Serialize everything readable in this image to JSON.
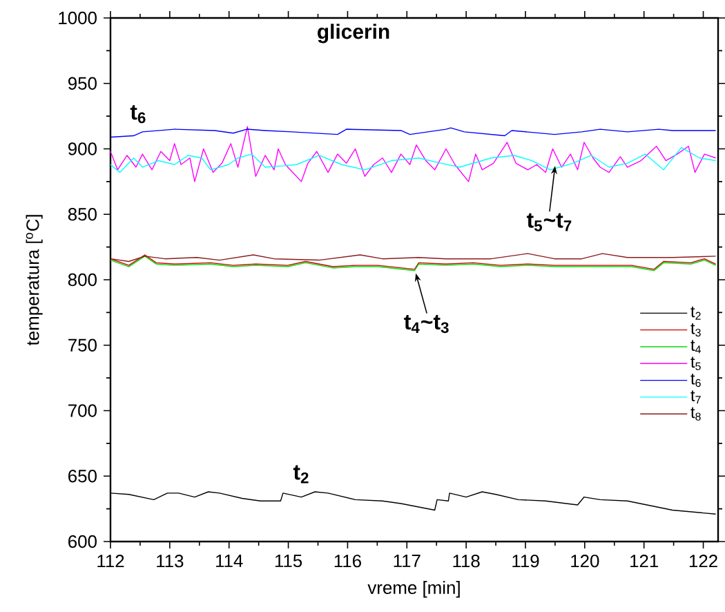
{
  "chart_data": {
    "type": "line",
    "title": "glicerin",
    "xlabel": "vreme [min]",
    "ylabel": "temperatura [$^{o}$C]",
    "xlim": [
      112,
      122.25
    ],
    "xticks": [
      112,
      113,
      114,
      115,
      116,
      117,
      118,
      119,
      120,
      121,
      122
    ],
    "ylim": [
      600,
      1000
    ],
    "yticks": [
      600,
      650,
      700,
      750,
      800,
      850,
      900,
      950,
      1000
    ],
    "legend": "bottom right",
    "grid": false,
    "marker": "none",
    "line_style": "solid",
    "annotations": [
      {
        "text": "t$_{6}$",
        "x": 112.47,
        "y": 912
      },
      {
        "text": "t$_{5}$~t$_{7}$",
        "x": 119.5,
        "y": 888
      },
      {
        "text": "t$_{4}$~t$_{3}$",
        "x": 117.15,
        "y": 806
      },
      {
        "text": "t$_{2}$",
        "x": 115.22,
        "y": 637
      }
    ],
    "series": [
      {
        "name": "t$_{2}$",
        "color": "#000000",
        "x": [
          112.0,
          112.31,
          112.73,
          112.96,
          113.15,
          113.42,
          113.65,
          113.84,
          114.22,
          114.53,
          114.87,
          114.91,
          115.22,
          115.45,
          115.67,
          116.13,
          116.59,
          116.9,
          117.47,
          117.51,
          117.7,
          117.72,
          118.0,
          118.27,
          118.5,
          118.88,
          119.34,
          119.88,
          119.99,
          120.26,
          120.72,
          121.48,
          122.21
        ],
        "values": [
          637,
          636,
          632,
          637,
          637,
          634,
          638,
          637,
          633,
          631,
          631,
          637,
          634,
          638,
          637,
          632,
          631,
          629,
          624,
          632,
          631,
          637,
          634,
          638,
          636,
          632,
          631,
          628,
          634,
          632,
          631,
          624,
          621
        ]
      },
      {
        "name": "t$_{3}$",
        "color": "#cc0000",
        "x": [
          112.0,
          112.31,
          112.58,
          112.77,
          113.08,
          113.69,
          114.07,
          114.45,
          114.99,
          115.29,
          115.75,
          116.13,
          116.51,
          117.13,
          117.2,
          117.66,
          118.12,
          118.58,
          119.04,
          119.49,
          119.95,
          120.33,
          120.79,
          121.17,
          121.33,
          121.79,
          122.02,
          122.21
        ],
        "values": [
          816,
          811,
          819,
          813,
          812,
          813,
          811,
          812,
          811,
          814,
          810,
          811,
          811,
          808,
          813,
          812,
          813,
          811,
          812,
          811,
          811,
          811,
          811,
          808,
          814,
          813,
          816,
          812
        ]
      },
      {
        "name": "t$_{4}$",
        "color": "#00dd00",
        "x": [
          112.0,
          112.31,
          112.58,
          112.77,
          113.08,
          113.69,
          114.07,
          114.45,
          114.99,
          115.29,
          115.75,
          116.13,
          116.51,
          117.13,
          117.2,
          117.66,
          118.12,
          118.58,
          119.04,
          119.49,
          119.95,
          120.33,
          120.79,
          121.17,
          121.33,
          121.79,
          122.02,
          122.21
        ],
        "values": [
          815,
          810,
          818,
          812,
          811,
          812,
          810,
          811,
          810,
          813,
          809,
          810,
          810,
          807,
          812,
          811,
          812,
          810,
          811,
          810,
          810,
          810,
          810,
          807,
          813,
          812,
          815,
          811
        ]
      },
      {
        "name": "t$_{5}$",
        "color": "#ff00ff",
        "x": [
          112.0,
          112.12,
          112.28,
          112.43,
          112.54,
          112.7,
          112.85,
          113.0,
          113.08,
          113.19,
          113.34,
          113.42,
          113.57,
          113.73,
          113.88,
          114.03,
          114.15,
          114.31,
          114.45,
          114.61,
          114.76,
          114.83,
          114.95,
          115.22,
          115.33,
          115.48,
          115.67,
          115.83,
          115.98,
          116.13,
          116.29,
          116.44,
          116.59,
          116.74,
          116.9,
          117.05,
          117.16,
          117.32,
          117.47,
          117.66,
          117.81,
          118.04,
          118.16,
          118.27,
          118.46,
          118.69,
          118.84,
          119.04,
          119.19,
          119.34,
          119.46,
          119.61,
          119.76,
          119.88,
          119.99,
          120.14,
          120.26,
          120.41,
          120.6,
          120.72,
          120.95,
          121.21,
          121.37,
          121.56,
          121.75,
          121.86,
          122.02,
          122.21
        ],
        "values": [
          898,
          884,
          895,
          886,
          896,
          884,
          898,
          891,
          904,
          888,
          893,
          875,
          900,
          882,
          889,
          904,
          886,
          917,
          879,
          895,
          884,
          900,
          888,
          875,
          889,
          898,
          882,
          896,
          889,
          900,
          879,
          888,
          893,
          882,
          896,
          888,
          903,
          891,
          884,
          900,
          888,
          875,
          896,
          884,
          889,
          905,
          889,
          884,
          888,
          882,
          900,
          886,
          896,
          884,
          905,
          893,
          886,
          882,
          894,
          886,
          891,
          902,
          891,
          896,
          902,
          882,
          896,
          893
        ]
      },
      {
        "name": "t$_{6}$",
        "color": "#0000ff",
        "x": [
          112.01,
          112.39,
          112.54,
          113.08,
          113.76,
          114.07,
          114.3,
          114.61,
          115.06,
          115.83,
          115.98,
          116.9,
          117.05,
          117.66,
          117.74,
          117.97,
          118.65,
          118.77,
          119.49,
          119.95,
          120.26,
          120.72,
          121.25,
          121.48,
          122.21
        ],
        "values": [
          909,
          910,
          913,
          915,
          914,
          912,
          915,
          914,
          913,
          911,
          915,
          914,
          911,
          915,
          916,
          913,
          910,
          914,
          911,
          913,
          915,
          913,
          915,
          914,
          914
        ]
      },
      {
        "name": "t$_{7}$",
        "color": "#00ffff",
        "x": [
          112.0,
          112.16,
          112.39,
          112.54,
          112.81,
          113.08,
          113.31,
          113.54,
          113.69,
          113.99,
          114.15,
          114.38,
          114.61,
          114.91,
          115.14,
          115.52,
          115.9,
          116.29,
          116.74,
          117.2,
          117.58,
          117.89,
          118.42,
          118.81,
          119.11,
          119.42,
          119.8,
          120.11,
          120.41,
          120.72,
          121.02,
          121.33,
          121.63,
          121.94,
          122.21
        ],
        "values": [
          888,
          882,
          893,
          886,
          891,
          888,
          895,
          893,
          884,
          888,
          893,
          896,
          886,
          887,
          888,
          895,
          888,
          884,
          891,
          893,
          889,
          886,
          893,
          895,
          891,
          884,
          889,
          895,
          886,
          889,
          896,
          884,
          901,
          893,
          891
        ]
      },
      {
        "name": "t$_{8}$",
        "color": "#8b1a1a",
        "x": [
          112.0,
          112.31,
          112.58,
          112.92,
          113.46,
          113.84,
          114.41,
          114.76,
          115.52,
          116.21,
          116.59,
          117.2,
          117.66,
          118.42,
          119.04,
          119.49,
          119.95,
          120.3,
          120.72,
          121.48,
          122.21
        ],
        "values": [
          816,
          814,
          818,
          816,
          817,
          815,
          819,
          816,
          815,
          819,
          816,
          817,
          816,
          816,
          820,
          816,
          816,
          820,
          817,
          817,
          818
        ]
      }
    ]
  }
}
